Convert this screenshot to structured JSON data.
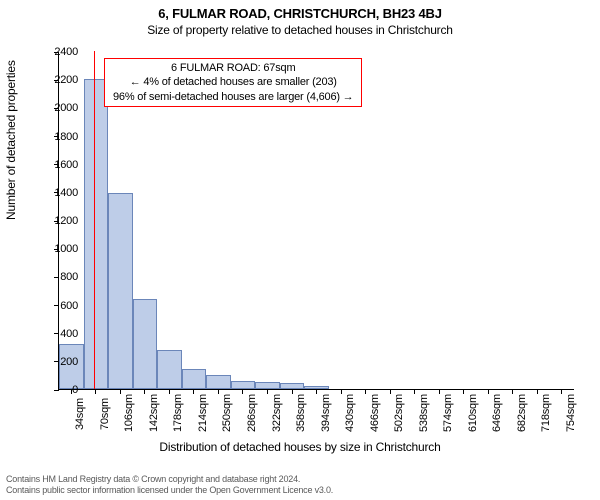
{
  "title_line1": "6, FULMAR ROAD, CHRISTCHURCH, BH23 4BJ",
  "title_line2": "Size of property relative to detached houses in Christchurch",
  "title_fontsize": 13,
  "subtitle_fontsize": 12,
  "axis_label_fontsize": 12,
  "tick_fontsize": 11,
  "ylabel": "Number of detached properties",
  "xlabel": "Distribution of detached houses by size in Christchurch",
  "annotation": {
    "line1": "6 FULMAR ROAD: 67sqm",
    "line2": "← 4% of detached houses are smaller (203)",
    "line3": "96% of semi-detached houses are larger (4,606) →",
    "border_color": "#ff0000",
    "fontsize": 11
  },
  "marker": {
    "x_value": 67,
    "color": "#ff0000"
  },
  "chart": {
    "type": "histogram",
    "x_start": 16,
    "x_end": 773.2,
    "ylim": [
      0,
      2400
    ],
    "ytick_step": 200,
    "xtick_start": 34,
    "xtick_step": 36,
    "xtick_count": 21,
    "xtick_suffix": "sqm",
    "bar_fill": "#becde8",
    "bar_stroke": "#6b86b9",
    "background": "#ffffff",
    "bins": [
      {
        "start": 16,
        "end": 52,
        "value": 320
      },
      {
        "start": 52,
        "end": 88,
        "value": 2200
      },
      {
        "start": 88,
        "end": 124,
        "value": 1390
      },
      {
        "start": 124,
        "end": 160,
        "value": 640
      },
      {
        "start": 160,
        "end": 196,
        "value": 280
      },
      {
        "start": 196,
        "end": 232,
        "value": 140
      },
      {
        "start": 232,
        "end": 268,
        "value": 100
      },
      {
        "start": 268,
        "end": 304,
        "value": 60
      },
      {
        "start": 304,
        "end": 340,
        "value": 50
      },
      {
        "start": 340,
        "end": 376,
        "value": 40
      },
      {
        "start": 376,
        "end": 412,
        "value": 20
      },
      {
        "start": 412,
        "end": 448,
        "value": 0
      },
      {
        "start": 448,
        "end": 484,
        "value": 0
      },
      {
        "start": 484,
        "end": 520,
        "value": 0
      },
      {
        "start": 520,
        "end": 556,
        "value": 0
      },
      {
        "start": 556,
        "end": 592,
        "value": 0
      },
      {
        "start": 592,
        "end": 628,
        "value": 0
      },
      {
        "start": 628,
        "end": 664,
        "value": 0
      },
      {
        "start": 664,
        "end": 700,
        "value": 0
      },
      {
        "start": 700,
        "end": 736,
        "value": 0
      },
      {
        "start": 736,
        "end": 772,
        "value": 0
      }
    ]
  },
  "footer": {
    "line1": "Contains HM Land Registry data © Crown copyright and database right 2024.",
    "line2": "Contains public sector information licensed under the Open Government Licence v3.0.",
    "fontsize": 9,
    "color": "#595959"
  }
}
